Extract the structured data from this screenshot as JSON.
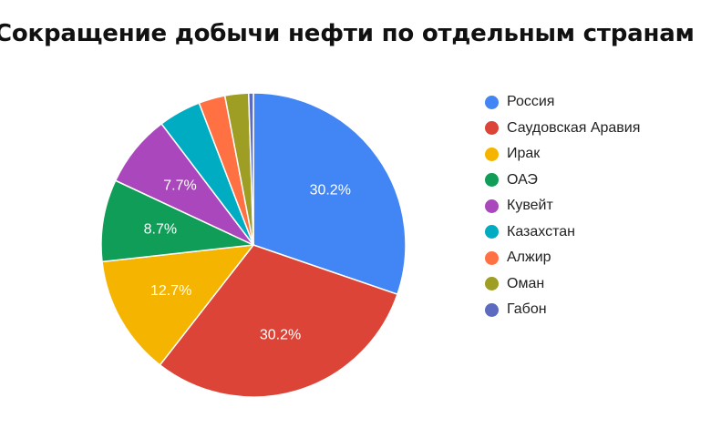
{
  "chart_data": {
    "type": "pie",
    "title": "Сокращение добычи нефти по отдельным странам",
    "legend_position": "right",
    "categories": [
      "Россия",
      "Саудовская Аравия",
      "Ирак",
      "ОАЭ",
      "Кувейт",
      "Казахстан",
      "Алжир",
      "Оман",
      "Габон"
    ],
    "values": [
      30.2,
      30.2,
      12.7,
      8.7,
      7.7,
      4.5,
      2.8,
      2.5,
      0.5
    ],
    "data_labels": [
      "30.2%",
      "30.2%",
      "12.7%",
      "8.7%",
      "7.7%",
      "",
      "",
      "",
      ""
    ],
    "colors": [
      "#4285f4",
      "#db4437",
      "#f4b400",
      "#0f9d58",
      "#ab47bc",
      "#00acc1",
      "#ff7043",
      "#9e9d24",
      "#5c6bc0"
    ]
  }
}
